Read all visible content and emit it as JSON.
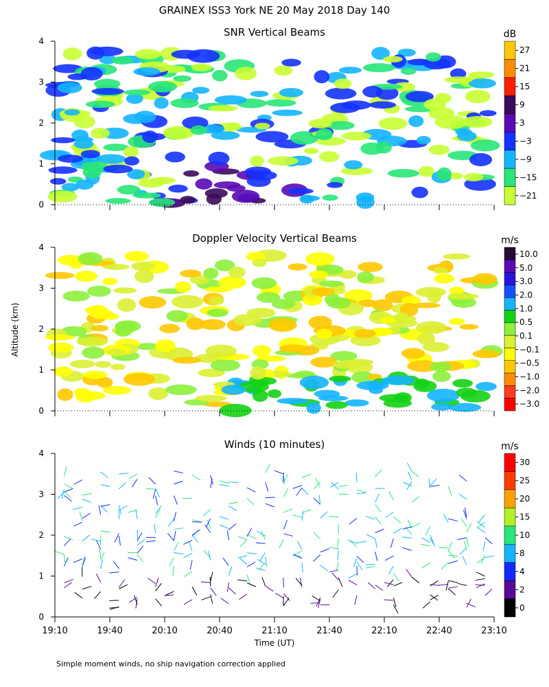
{
  "title": "GRAINEX ISS3 York NE  20 May 2018 Day 140",
  "y_axis_label": "Altitude (km)",
  "x_axis_label": "Time (UT)",
  "footnote": "Simple moment winds, no ship navigation correction applied",
  "x_ticks": [
    "19:10",
    "19:40",
    "20:10",
    "20:40",
    "21:10",
    "21:40",
    "22:10",
    "22:40",
    "23:10"
  ],
  "y_ticks": [
    "0",
    "1",
    "2",
    "3",
    "4"
  ],
  "chart_data": [
    {
      "type": "heatmap",
      "title": "SNR Vertical Beams",
      "x_range": [
        "19:10",
        "23:10"
      ],
      "y_range_km": [
        0,
        4
      ],
      "colorbar": {
        "unit": "dB",
        "labels": [
          "27",
          "21",
          "15",
          "9",
          "3",
          "−3",
          "−9",
          "−15",
          "−21"
        ],
        "colors": [
          "#ffc800",
          "#ff8c00",
          "#ff1e00",
          "#3c0a5a",
          "#5a0ab4",
          "#1432ff",
          "#14b4ff",
          "#28e678",
          "#c8ff32"
        ]
      }
    },
    {
      "type": "heatmap",
      "title": "Doppler Velocity Vertical Beams",
      "x_range": [
        "19:10",
        "23:10"
      ],
      "y_range_km": [
        0,
        4
      ],
      "colorbar": {
        "unit": "m/s",
        "labels": [
          "10.0",
          "5.0",
          "3.0",
          "2.0",
          "1.0",
          "0.5",
          "0.1",
          "−0.1",
          "−0.5",
          "−1.0",
          "−2.0",
          "−3.0"
        ],
        "colors": [
          "#280a32",
          "#5a0ab4",
          "#2814dc",
          "#1450ff",
          "#14b4ff",
          "#14d214",
          "#8cf03c",
          "#dcf032",
          "#ffff00",
          "#ffc800",
          "#ff8c00",
          "#ff3c1e",
          "#ff0000"
        ]
      }
    },
    {
      "type": "scatter",
      "title": "Winds (10 minutes)",
      "x_range": [
        "19:10",
        "23:10"
      ],
      "y_range_km": [
        0,
        4
      ],
      "colorbar": {
        "unit": "m/s",
        "labels": [
          "30",
          "25",
          "20",
          "15",
          "10",
          "8",
          "4",
          "2",
          "0"
        ],
        "colors": [
          "#ff0000",
          "#ff3c00",
          "#ffa000",
          "#b4f028",
          "#28e678",
          "#14b4ff",
          "#1428ff",
          "#5a0a96",
          "#000000"
        ]
      }
    }
  ]
}
